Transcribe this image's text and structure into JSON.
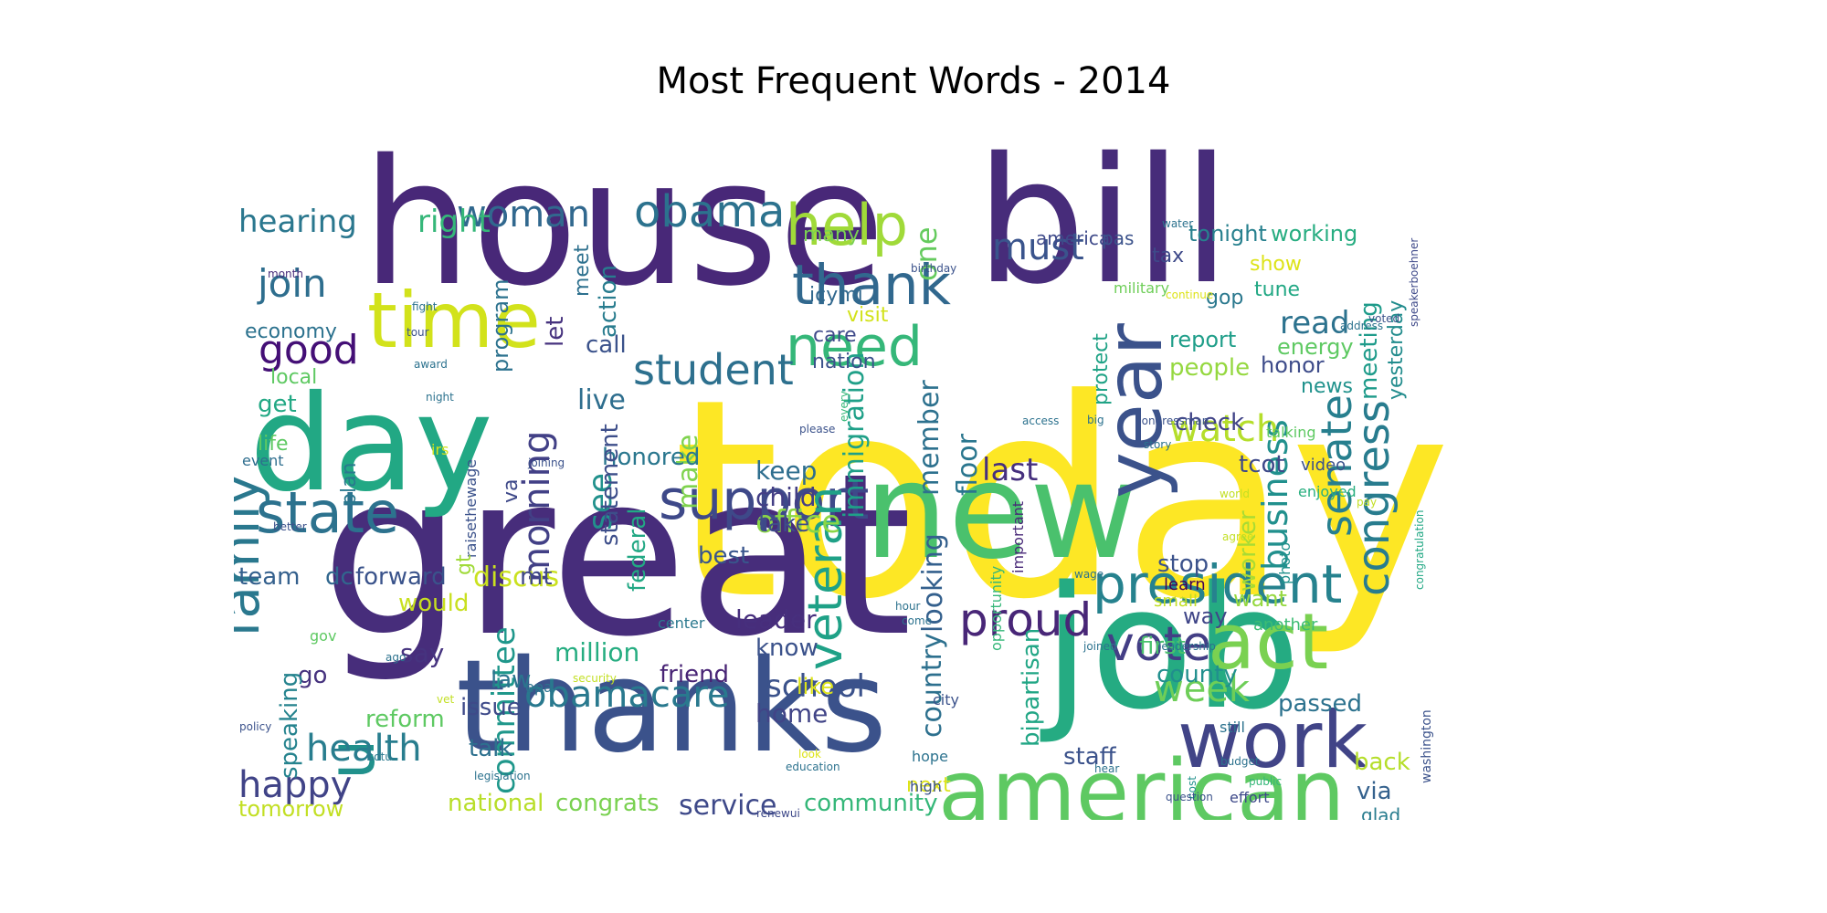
{
  "chart_data": {
    "type": "wordcloud",
    "title": "Most Frequent Words - 2014",
    "words": [
      {
        "text": "today",
        "color": "#fde725"
      },
      {
        "text": "great",
        "color": "#472d7b"
      },
      {
        "text": "house",
        "color": "#482878"
      },
      {
        "text": "bill",
        "color": "#472c7a"
      },
      {
        "text": "job",
        "color": "#25ab82"
      },
      {
        "text": "thanks",
        "color": "#3b528b"
      },
      {
        "text": "day",
        "color": "#22a884"
      },
      {
        "text": "new",
        "color": "#4ac16d"
      },
      {
        "text": "american",
        "color": "#5ec962"
      },
      {
        "text": "time",
        "color": "#d2e21b"
      },
      {
        "text": "work",
        "color": "#414487"
      },
      {
        "text": "year",
        "color": "#3b528b"
      },
      {
        "text": "act",
        "color": "#7ad151"
      },
      {
        "text": "state",
        "color": "#2c728e"
      },
      {
        "text": "support",
        "color": "#3e4989"
      },
      {
        "text": "help",
        "color": "#a0da39"
      },
      {
        "text": "president",
        "color": "#26828e"
      },
      {
        "text": "family",
        "color": "#2a788e"
      },
      {
        "text": "u",
        "color": "#21918c"
      },
      {
        "text": "thank",
        "color": "#31688e"
      },
      {
        "text": "need",
        "color": "#35b779"
      },
      {
        "text": "veteran",
        "color": "#1fa187"
      },
      {
        "text": "obama",
        "color": "#2c728e"
      },
      {
        "text": "congress",
        "color": "#287c8e"
      },
      {
        "text": "senate",
        "color": "#277f8e"
      },
      {
        "text": "vote",
        "color": "#433e85"
      },
      {
        "text": "proud",
        "color": "#482677"
      },
      {
        "text": "student",
        "color": "#2d708e"
      },
      {
        "text": "obamacare",
        "color": "#29798e"
      },
      {
        "text": "health",
        "color": "#287d8e"
      },
      {
        "text": "woman",
        "color": "#31688e"
      },
      {
        "text": "watch",
        "color": "#b5de2b"
      },
      {
        "text": "week",
        "color": "#6ece58"
      },
      {
        "text": "happy",
        "color": "#404387"
      },
      {
        "text": "good",
        "color": "#440f76"
      },
      {
        "text": "join",
        "color": "#2e6e8e"
      },
      {
        "text": "must",
        "color": "#3a548c"
      },
      {
        "text": "morning",
        "color": "#424086"
      },
      {
        "text": "business",
        "color": "#21908d"
      },
      {
        "text": "office",
        "color": "#8bd646"
      },
      {
        "text": "committee",
        "color": "#1f978b"
      },
      {
        "text": "right",
        "color": "#35b779"
      },
      {
        "text": "hearing",
        "color": "#2a778e"
      },
      {
        "text": "school",
        "color": "#3b528b"
      },
      {
        "text": "live",
        "color": "#2e6e8e"
      },
      {
        "text": "see",
        "color": "#21918c"
      },
      {
        "text": "last",
        "color": "#46307e"
      },
      {
        "text": "read",
        "color": "#2c728e"
      },
      {
        "text": "service",
        "color": "#3e4989"
      },
      {
        "text": "one",
        "color": "#65cb5e"
      },
      {
        "text": "discus",
        "color": "#cae11f"
      },
      {
        "text": "million",
        "color": "#26ad81"
      },
      {
        "text": "national",
        "color": "#b8de29"
      },
      {
        "text": "congrats",
        "color": "#7ad151"
      },
      {
        "text": "community",
        "color": "#35b779"
      },
      {
        "text": "tomorrow",
        "color": "#c2df23"
      },
      {
        "text": "passed",
        "color": "#2c728e"
      },
      {
        "text": "county",
        "color": "#218f8d"
      },
      {
        "text": "first",
        "color": "#4ac16d"
      },
      {
        "text": "staff",
        "color": "#3b528b"
      },
      {
        "text": "back",
        "color": "#b5de2b"
      },
      {
        "text": "via",
        "color": "#34618d"
      },
      {
        "text": "glad",
        "color": "#287c8e"
      },
      {
        "text": "country",
        "color": "#2d708e"
      },
      {
        "text": "looking",
        "color": "#34608d"
      },
      {
        "text": "bipartisan",
        "color": "#21a685"
      },
      {
        "text": "immigration",
        "color": "#1fa088"
      },
      {
        "text": "member",
        "color": "#2d718e"
      },
      {
        "text": "floor",
        "color": "#2a768e"
      },
      {
        "text": "keep",
        "color": "#2e6e8e"
      },
      {
        "text": "child",
        "color": "#433e85"
      },
      {
        "text": "take",
        "color": "#3e4c8a"
      },
      {
        "text": "make",
        "color": "#7fd34e"
      },
      {
        "text": "honored",
        "color": "#2a778e"
      },
      {
        "text": "federal",
        "color": "#22a884"
      },
      {
        "text": "statement",
        "color": "#3d4e8a"
      },
      {
        "text": "best",
        "color": "#39558c"
      },
      {
        "text": "mt",
        "color": "#3f4788"
      },
      {
        "text": "forward",
        "color": "#3a538b"
      },
      {
        "text": "team",
        "color": "#34608d"
      },
      {
        "text": "dc",
        "color": "#31678e"
      },
      {
        "text": "would",
        "color": "#c8e020"
      },
      {
        "text": "leader",
        "color": "#472f7d"
      },
      {
        "text": "know",
        "color": "#3b528b"
      },
      {
        "text": "friend",
        "color": "#482475"
      },
      {
        "text": "home",
        "color": "#414487"
      },
      {
        "text": "like",
        "color": "#dde318"
      },
      {
        "text": "say",
        "color": "#46337f"
      },
      {
        "text": "law",
        "color": "#2b748e"
      },
      {
        "text": "issue",
        "color": "#3e4a89"
      },
      {
        "text": "reform",
        "color": "#5ec962"
      },
      {
        "text": "talk",
        "color": "#2d708e"
      },
      {
        "text": "go",
        "color": "#46327e"
      },
      {
        "text": "speaking",
        "color": "#25838e"
      },
      {
        "text": "stop",
        "color": "#3b528b"
      },
      {
        "text": "want",
        "color": "#95d840"
      },
      {
        "text": "way",
        "color": "#404688"
      },
      {
        "text": "another",
        "color": "#3dbc74"
      },
      {
        "text": "small",
        "color": "#c2df23"
      },
      {
        "text": "learn",
        "color": "#440154"
      },
      {
        "text": "worker",
        "color": "#a8db34"
      },
      {
        "text": "check",
        "color": "#414487"
      },
      {
        "text": "tcot",
        "color": "#3e4989"
      },
      {
        "text": "video",
        "color": "#3b528b"
      },
      {
        "text": "enjoyed",
        "color": "#29af7f"
      },
      {
        "text": "people",
        "color": "#95d840"
      },
      {
        "text": "report",
        "color": "#1f9e89"
      },
      {
        "text": "honor",
        "color": "#3e4c8a"
      },
      {
        "text": "energy",
        "color": "#5ec962"
      },
      {
        "text": "news",
        "color": "#20928c"
      },
      {
        "text": "meeting",
        "color": "#1e9b8a"
      },
      {
        "text": "yesterday",
        "color": "#228c8d"
      },
      {
        "text": "tonight",
        "color": "#27808e"
      },
      {
        "text": "working",
        "color": "#27ad81"
      },
      {
        "text": "tax",
        "color": "#3e4989"
      },
      {
        "text": "show",
        "color": "#dde318"
      },
      {
        "text": "tune",
        "color": "#22a884"
      },
      {
        "text": "gop",
        "color": "#2a788e"
      },
      {
        "text": "military",
        "color": "#6ece58"
      },
      {
        "text": "protect",
        "color": "#20a386"
      },
      {
        "text": "care",
        "color": "#3e4989"
      },
      {
        "text": "nation",
        "color": "#3b528b"
      },
      {
        "text": "icymi",
        "color": "#31688e"
      },
      {
        "text": "visit",
        "color": "#d2e21b"
      },
      {
        "text": "many",
        "color": "#7ad151"
      },
      {
        "text": "america",
        "color": "#3e4989"
      },
      {
        "text": "pas",
        "color": "#3b528b"
      },
      {
        "text": "meet",
        "color": "#2d708e"
      },
      {
        "text": "action",
        "color": "#287c8e"
      },
      {
        "text": "call",
        "color": "#3b528b"
      },
      {
        "text": "let",
        "color": "#46327e"
      },
      {
        "text": "program",
        "color": "#2c728e"
      },
      {
        "text": "economy",
        "color": "#2c728e"
      },
      {
        "text": "local",
        "color": "#5ec962"
      },
      {
        "text": "get",
        "color": "#22a884"
      },
      {
        "text": "life",
        "color": "#5ec962"
      },
      {
        "text": "event",
        "color": "#2e6e8e"
      },
      {
        "text": "plan",
        "color": "#2a788e"
      },
      {
        "text": "irs",
        "color": "#d2e21b"
      },
      {
        "text": "va",
        "color": "#3e4989"
      },
      {
        "text": "raisethewage",
        "color": "#3b528b"
      },
      {
        "text": "gt",
        "color": "#a0da39"
      },
      {
        "text": "epa",
        "color": "#2c728e"
      },
      {
        "text": "next",
        "color": "#dde318"
      },
      {
        "text": "hope",
        "color": "#2c728e"
      },
      {
        "text": "high",
        "color": "#3b528b"
      },
      {
        "text": "opportunity",
        "color": "#35b779"
      },
      {
        "text": "important",
        "color": "#482878"
      },
      {
        "text": "wage",
        "color": "#2c728e"
      },
      {
        "text": "hour",
        "color": "#2c728e"
      },
      {
        "text": "come",
        "color": "#2c728e"
      },
      {
        "text": "center",
        "color": "#2a788e"
      },
      {
        "text": "city",
        "color": "#3b528b"
      },
      {
        "text": "gov",
        "color": "#5ec962"
      },
      {
        "text": "ago",
        "color": "#2c728e"
      },
      {
        "text": "joined",
        "color": "#2c728e"
      },
      {
        "text": "leadership",
        "color": "#2c728e"
      },
      {
        "text": "still",
        "color": "#2c728e"
      },
      {
        "text": "cost",
        "color": "#21918c"
      },
      {
        "text": "budget",
        "color": "#2c728e"
      },
      {
        "text": "public",
        "color": "#35b779"
      },
      {
        "text": "question",
        "color": "#3b528b"
      },
      {
        "text": "effort",
        "color": "#3e4989"
      },
      {
        "text": "washington",
        "color": "#3b528b"
      },
      {
        "text": "education",
        "color": "#2c728e"
      },
      {
        "text": "look",
        "color": "#dde318"
      },
      {
        "text": "renewui",
        "color": "#3e4989"
      },
      {
        "text": "hear",
        "color": "#2c728e"
      },
      {
        "text": "security",
        "color": "#c2df23"
      },
      {
        "text": "vet",
        "color": "#c2df23"
      },
      {
        "text": "policy",
        "color": "#3b528b"
      },
      {
        "text": "sotu",
        "color": "#2a788e"
      },
      {
        "text": "legislation",
        "color": "#2c728e"
      },
      {
        "text": "congressional",
        "color": "#2c728e"
      },
      {
        "text": "better",
        "color": "#3b528b"
      },
      {
        "text": "joining",
        "color": "#3b528b"
      },
      {
        "text": "please",
        "color": "#3b528b"
      },
      {
        "text": "night",
        "color": "#2c728e"
      },
      {
        "text": "award",
        "color": "#2c728e"
      },
      {
        "text": "tour",
        "color": "#3b528b"
      },
      {
        "text": "fight",
        "color": "#2c728e"
      },
      {
        "text": "month",
        "color": "#472c7a"
      },
      {
        "text": "birthday",
        "color": "#3b528b"
      },
      {
        "text": "every",
        "color": "#35b779"
      },
      {
        "text": "continue",
        "color": "#dde318"
      },
      {
        "text": "water",
        "color": "#2c728e"
      },
      {
        "text": "address",
        "color": "#2c728e"
      },
      {
        "text": "voted",
        "color": "#3b528b"
      },
      {
        "text": "speakerboehner",
        "color": "#3e4989"
      },
      {
        "text": "access",
        "color": "#2c728e"
      },
      {
        "text": "big",
        "color": "#2c728e"
      },
      {
        "text": "congressman",
        "color": "#3b528b"
      },
      {
        "text": "story",
        "color": "#2c728e"
      },
      {
        "text": "talking",
        "color": "#5ec962"
      },
      {
        "text": "world",
        "color": "#c2df23"
      },
      {
        "text": "pay",
        "color": "#c2df23"
      },
      {
        "text": "agree",
        "color": "#c2df23"
      },
      {
        "text": "photo",
        "color": "#21918c"
      },
      {
        "text": "congratulation",
        "color": "#22a884"
      }
    ]
  }
}
